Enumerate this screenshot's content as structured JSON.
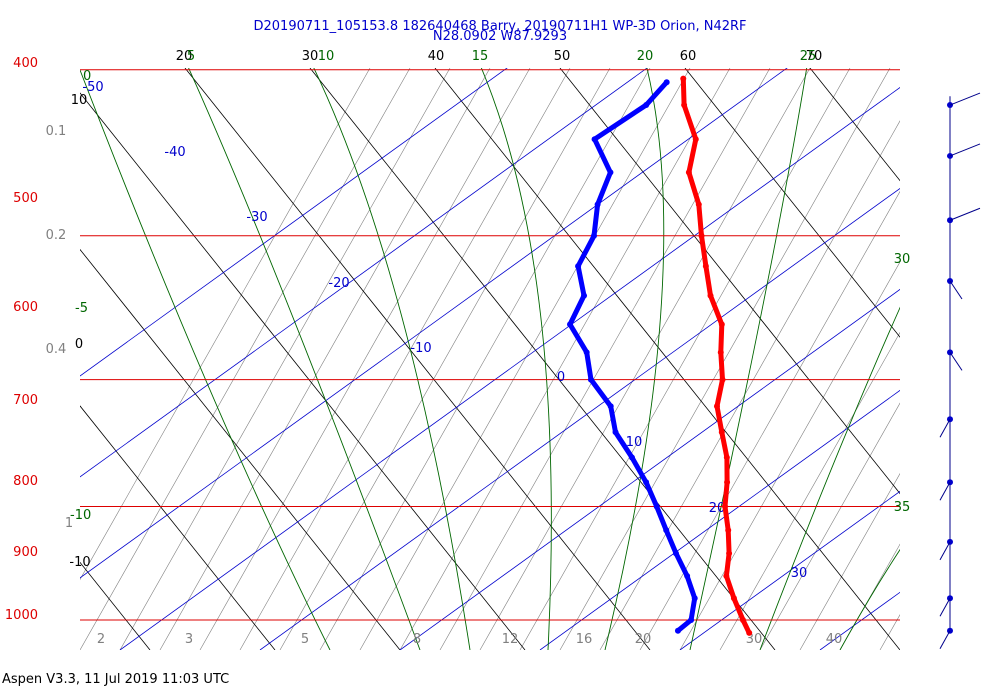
{
  "title_line1": "D20190711_105153.8 182640468 Barry, 20190711H1 WP-3D Orion, N42RF",
  "title_line2": "N28.0902 W87.9293",
  "footer": "Aspen V3.3, 11 Jul 2019  11:03 UTC",
  "colors": {
    "isobar": "#dd0000",
    "isotherm": "#000000",
    "dry_adiabat": "#000000",
    "moist_adiabat": "#006600",
    "mixing_ratio": "#808080",
    "temperature": "#ff0000",
    "dewpoint": "#0000ff",
    "blue_lines": "#0000cc"
  },
  "chart_data": {
    "type": "line",
    "diagram": "skew-T",
    "ylim": [
      400,
      1050
    ],
    "y_scale": "log pressure (hPa)",
    "isobars": [
      400,
      500,
      600,
      700,
      800,
      900,
      1000
    ],
    "isobar_labels": [
      "400",
      "500",
      "600",
      "700",
      "800",
      "900",
      "1000"
    ],
    "isotherms_top_labels": [
      "20",
      "30",
      "40",
      "50",
      "60",
      "70"
    ],
    "moist_adiabat_top_labels": [
      "5",
      "10",
      "15",
      "20",
      "25"
    ],
    "moist_adiabat_side_labels": [
      "0",
      "-5",
      "-10",
      "30",
      "35"
    ],
    "blue_line_labels": [
      "-50",
      "-40",
      "-30",
      "-20",
      "-10",
      "0",
      "10",
      "20",
      "30"
    ],
    "mixing_ratio_labels": [
      "0.1",
      "0.2",
      "0.4",
      "1",
      "2",
      "3",
      "5",
      "8",
      "12",
      "16",
      "20",
      "30",
      "40"
    ],
    "left_black_labels": [
      "10",
      "0",
      "-10"
    ],
    "series": [
      {
        "key": "temperature",
        "values": [
          {
            "p": 605,
            "t": 4.6
          },
          {
            "p": 620,
            "t": 5.5
          },
          {
            "p": 640,
            "t": 7.5
          },
          {
            "p": 660,
            "t": 8.0
          },
          {
            "p": 680,
            "t": 9.8
          },
          {
            "p": 700,
            "t": 11.0
          },
          {
            "p": 720,
            "t": 12.3
          },
          {
            "p": 740,
            "t": 13.6
          },
          {
            "p": 760,
            "t": 15.4
          },
          {
            "p": 780,
            "t": 16.2
          },
          {
            "p": 800,
            "t": 17.2
          },
          {
            "p": 820,
            "t": 17.6
          },
          {
            "p": 840,
            "t": 18.8
          },
          {
            "p": 860,
            "t": 20.0
          },
          {
            "p": 880,
            "t": 20.8
          },
          {
            "p": 900,
            "t": 21.4
          },
          {
            "p": 920,
            "t": 22.4
          },
          {
            "p": 940,
            "t": 23.2
          },
          {
            "p": 960,
            "t": 23.7
          },
          {
            "p": 980,
            "t": 25.0
          },
          {
            "p": 1000,
            "t": 26.4
          },
          {
            "p": 1012,
            "t": 27.3
          }
        ]
      },
      {
        "key": "dewpoint",
        "values": [
          {
            "p": 607,
            "t": 3.4
          },
          {
            "p": 620,
            "t": 2.5
          },
          {
            "p": 640,
            "t": -0.5
          },
          {
            "p": 660,
            "t": 1.8
          },
          {
            "p": 680,
            "t": 1.8
          },
          {
            "p": 700,
            "t": 2.5
          },
          {
            "p": 720,
            "t": 2.2
          },
          {
            "p": 740,
            "t": 3.6
          },
          {
            "p": 760,
            "t": 3.4
          },
          {
            "p": 780,
            "t": 5.6
          },
          {
            "p": 800,
            "t": 6.8
          },
          {
            "p": 820,
            "t": 9.2
          },
          {
            "p": 840,
            "t": 10.4
          },
          {
            "p": 860,
            "t": 12.5
          },
          {
            "p": 880,
            "t": 14.4
          },
          {
            "p": 900,
            "t": 16.0
          },
          {
            "p": 920,
            "t": 17.5
          },
          {
            "p": 940,
            "t": 19.0
          },
          {
            "p": 960,
            "t": 20.6
          },
          {
            "p": 980,
            "t": 21.9
          },
          {
            "p": 1000,
            "t": 22.3
          },
          {
            "p": 1010,
            "t": 21.6
          }
        ]
      }
    ],
    "wind_barbs": [
      {
        "p": 620
      },
      {
        "p": 650
      },
      {
        "p": 690
      },
      {
        "p": 730
      },
      {
        "p": 780
      },
      {
        "p": 830
      },
      {
        "p": 880
      },
      {
        "p": 930
      },
      {
        "p": 980
      },
      {
        "p": 1010
      }
    ]
  }
}
